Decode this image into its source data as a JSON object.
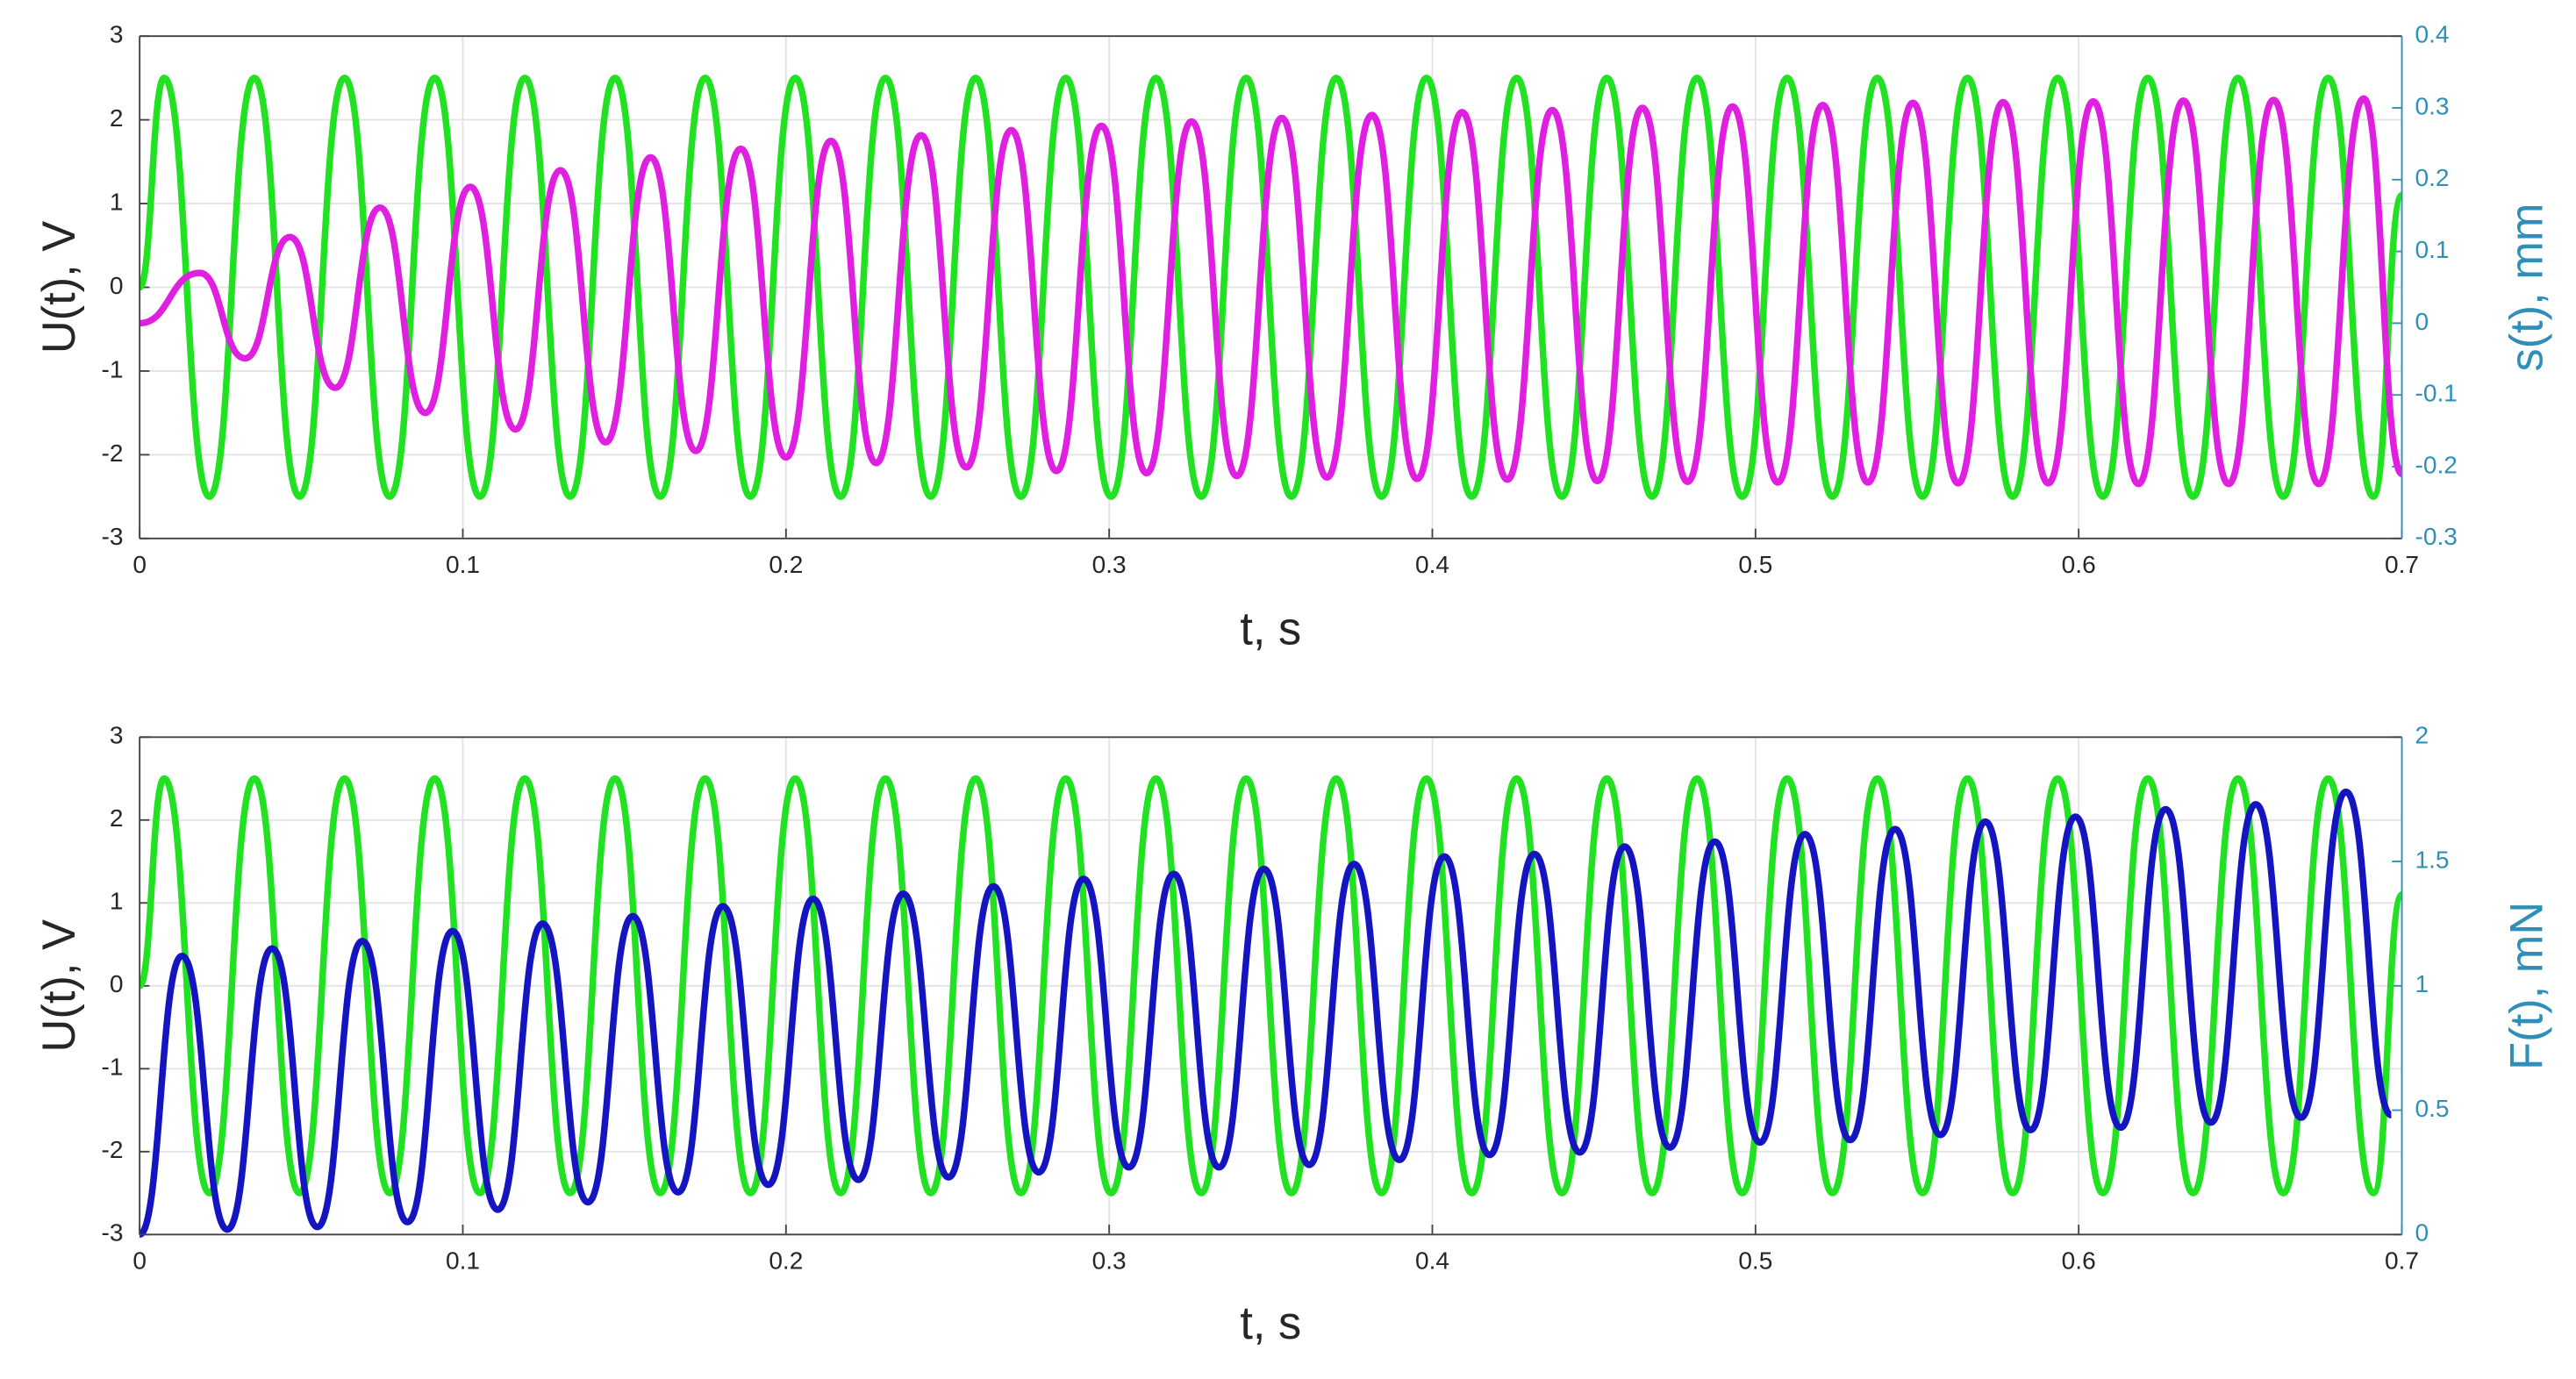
{
  "chart_data": [
    {
      "type": "line",
      "xlabel": "t, s",
      "ylabel": "U(t), V",
      "y2label": "s(t), mm",
      "xlim": [
        0,
        0.7
      ],
      "xticks": [
        0,
        0.1,
        0.2,
        0.3,
        0.4,
        0.5,
        0.6,
        0.7
      ],
      "ylim": [
        -3,
        3
      ],
      "yticks": [
        -3,
        -2,
        -1,
        0,
        1,
        2,
        3
      ],
      "y2lim": [
        -0.3,
        0.4
      ],
      "y2ticks": [
        -0.3,
        -0.2,
        -0.1,
        0,
        0.1,
        0.2,
        0.3,
        0.4
      ],
      "grid": true,
      "y2color": "#2f8fb8",
      "series": [
        {
          "color": "#22e022",
          "x": [
            0,
            0.0076,
            0.0216,
            0.0355,
            0.0495,
            0.0634,
            0.0774,
            0.0913,
            0.1053,
            0.1192,
            0.1332,
            0.1471,
            0.1611,
            0.175,
            0.189,
            0.2029,
            0.2169,
            0.2308,
            0.2448,
            0.2587,
            0.2727,
            0.2866,
            0.3006,
            0.3145,
            0.3285,
            0.3424,
            0.3564,
            0.3703,
            0.3843,
            0.3982,
            0.4122,
            0.4261,
            0.4401,
            0.454,
            0.468,
            0.4819,
            0.4959,
            0.5098,
            0.5238,
            0.5377,
            0.5517,
            0.5656,
            0.5796,
            0.5935,
            0.6075,
            0.6214,
            0.6354,
            0.6493,
            0.6633,
            0.6772,
            0.6912,
            0.7
          ],
          "values": [
            0,
            2.5,
            -2.5,
            2.5,
            -2.5,
            2.5,
            -2.5,
            2.5,
            -2.5,
            2.5,
            -2.5,
            2.5,
            -2.5,
            2.5,
            -2.5,
            2.5,
            -2.5,
            2.5,
            -2.5,
            2.5,
            -2.5,
            2.5,
            -2.5,
            2.5,
            -2.5,
            2.5,
            -2.5,
            2.5,
            -2.5,
            2.5,
            -2.5,
            2.5,
            -2.5,
            2.5,
            -2.5,
            2.5,
            -2.5,
            2.5,
            -2.5,
            2.5,
            -2.5,
            2.5,
            -2.5,
            2.5,
            -2.5,
            2.5,
            -2.5,
            2.5,
            -2.5,
            2.5,
            -2.5,
            1.1
          ]
        },
        {
          "color": "#e020e0",
          "axis": "y2",
          "x": [
            0,
            0.0186,
            0.0326,
            0.0465,
            0.0605,
            0.0744,
            0.0884,
            0.1023,
            0.1163,
            0.1302,
            0.1442,
            0.1581,
            0.1721,
            0.186,
            0.2,
            0.2139,
            0.2279,
            0.2418,
            0.2558,
            0.2697,
            0.2837,
            0.2976,
            0.3116,
            0.3255,
            0.3395,
            0.3534,
            0.3674,
            0.3813,
            0.3953,
            0.4092,
            0.4232,
            0.4371,
            0.4511,
            0.465,
            0.479,
            0.4929,
            0.5069,
            0.5208,
            0.5348,
            0.5487,
            0.5627,
            0.5766,
            0.5906,
            0.6045,
            0.6185,
            0.6324,
            0.6464,
            0.6603,
            0.6743,
            0.6882,
            0.7
          ],
          "values": [
            0,
            0.07,
            -0.049,
            0.12,
            -0.09,
            0.161,
            -0.125,
            0.19,
            -0.148,
            0.213,
            -0.166,
            0.231,
            -0.178,
            0.243,
            -0.187,
            0.254,
            -0.195,
            0.262,
            -0.201,
            0.269,
            -0.206,
            0.275,
            -0.209,
            0.281,
            -0.213,
            0.286,
            -0.215,
            0.29,
            -0.217,
            0.294,
            -0.218,
            0.297,
            -0.22,
            0.3,
            -0.221,
            0.302,
            -0.222,
            0.304,
            -0.222,
            0.307,
            -0.223,
            0.308,
            -0.223,
            0.309,
            -0.224,
            0.31,
            -0.224,
            0.311,
            -0.224,
            0.313,
            -0.21
          ]
        }
      ]
    },
    {
      "type": "line",
      "xlabel": "t, s",
      "ylabel": "U(t), V",
      "y2label": "F(t), mN",
      "xlim": [
        0,
        0.7
      ],
      "xticks": [
        0,
        0.1,
        0.2,
        0.3,
        0.4,
        0.5,
        0.6,
        0.7
      ],
      "ylim": [
        -3,
        3
      ],
      "yticks": [
        -3,
        -2,
        -1,
        0,
        1,
        2,
        3
      ],
      "y2lim": [
        0,
        2
      ],
      "y2ticks": [
        0,
        0.5,
        1,
        1.5,
        2
      ],
      "grid": true,
      "y2color": "#2f8fb8",
      "series": [
        {
          "color": "#22e022",
          "x": [
            0,
            0.0076,
            0.0216,
            0.0355,
            0.0495,
            0.0634,
            0.0774,
            0.0913,
            0.1053,
            0.1192,
            0.1332,
            0.1471,
            0.1611,
            0.175,
            0.189,
            0.2029,
            0.2169,
            0.2308,
            0.2448,
            0.2587,
            0.2727,
            0.2866,
            0.3006,
            0.3145,
            0.3285,
            0.3424,
            0.3564,
            0.3703,
            0.3843,
            0.3982,
            0.4122,
            0.4261,
            0.4401,
            0.454,
            0.468,
            0.4819,
            0.4959,
            0.5098,
            0.5238,
            0.5377,
            0.5517,
            0.5656,
            0.5796,
            0.5935,
            0.6075,
            0.6214,
            0.6354,
            0.6493,
            0.6633,
            0.6772,
            0.6912,
            0.7
          ],
          "values": [
            0,
            2.5,
            -2.5,
            2.5,
            -2.5,
            2.5,
            -2.5,
            2.5,
            -2.5,
            2.5,
            -2.5,
            2.5,
            -2.5,
            2.5,
            -2.5,
            2.5,
            -2.5,
            2.5,
            -2.5,
            2.5,
            -2.5,
            2.5,
            -2.5,
            2.5,
            -2.5,
            2.5,
            -2.5,
            2.5,
            -2.5,
            2.5,
            -2.5,
            2.5,
            -2.5,
            2.5,
            -2.5,
            2.5,
            -2.5,
            2.5,
            -2.5,
            2.5,
            -2.5,
            2.5,
            -2.5,
            2.5,
            -2.5,
            2.5,
            -2.5,
            2.5,
            -2.5,
            2.5,
            -2.5,
            1.1
          ]
        },
        {
          "color": "#1414c0",
          "axis": "y2",
          "x": [
            0,
            0.0131,
            0.0271,
            0.041,
            0.055,
            0.0689,
            0.0829,
            0.0968,
            0.1108,
            0.1247,
            0.1387,
            0.1526,
            0.1666,
            0.1805,
            0.1945,
            0.2084,
            0.2224,
            0.2363,
            0.2503,
            0.2642,
            0.2782,
            0.2921,
            0.3061,
            0.32,
            0.334,
            0.3479,
            0.3619,
            0.3758,
            0.3898,
            0.4037,
            0.4177,
            0.4316,
            0.4456,
            0.4595,
            0.4735,
            0.4874,
            0.5014,
            0.5153,
            0.5293,
            0.5432,
            0.5572,
            0.5711,
            0.5851,
            0.599,
            0.613,
            0.6269,
            0.6409,
            0.6548,
            0.6688,
            0.6827,
            0.6967
          ],
          "values": [
            0,
            1.12,
            0.02,
            1.15,
            0.03,
            1.18,
            0.05,
            1.22,
            0.1,
            1.25,
            0.13,
            1.28,
            0.17,
            1.32,
            0.2,
            1.35,
            0.22,
            1.37,
            0.23,
            1.4,
            0.25,
            1.43,
            0.27,
            1.45,
            0.27,
            1.47,
            0.28,
            1.49,
            0.3,
            1.52,
            0.32,
            1.53,
            0.33,
            1.56,
            0.35,
            1.58,
            0.37,
            1.61,
            0.38,
            1.63,
            0.4,
            1.66,
            0.42,
            1.68,
            0.43,
            1.71,
            0.45,
            1.73,
            0.47,
            1.78,
            0.48
          ]
        }
      ]
    }
  ]
}
